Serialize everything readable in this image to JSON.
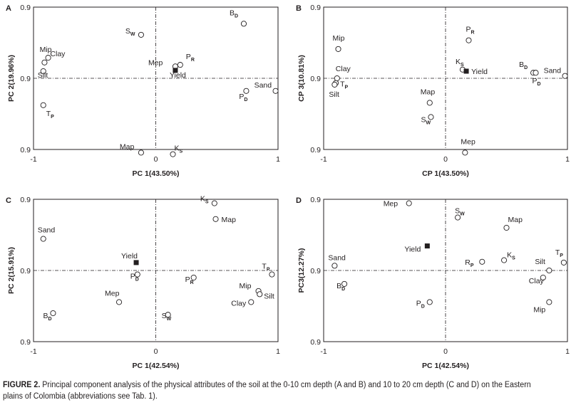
{
  "figure": {
    "caption_label": "FIGURE 2.",
    "caption_text": " Principal component analysis of the physical attributes of the soil at the 0-10 cm depth (A and B) and 10 to 20 cm depth (C and D) on the Eastern plains of Colombia (abbreviations see Tab. 1)."
  },
  "chart_data": [
    {
      "panel": "A",
      "type": "scatter",
      "xlabel": "PC 1(43.50%)",
      "ylabel": "PC 2(19.96%)",
      "xlim": [
        -1,
        1
      ],
      "ylim": [
        -0.9,
        0.9
      ],
      "xticks": [
        "-1",
        "0",
        "1"
      ],
      "yticks": [
        "0.9",
        "0.9",
        "0.9"
      ],
      "points": [
        {
          "label": "B",
          "sub": "D",
          "x": 0.72,
          "y": 0.69
        },
        {
          "label": "S",
          "sub": "W",
          "x": -0.12,
          "y": 0.55
        },
        {
          "label": "Mip",
          "x": -0.88,
          "y": 0.26
        },
        {
          "label": "Clay",
          "x": -0.91,
          "y": 0.2
        },
        {
          "label": "Silt",
          "x": -0.92,
          "y": 0.09
        },
        {
          "label": "P",
          "sub": "R",
          "x": 0.2,
          "y": 0.17
        },
        {
          "label": "Mep",
          "x": 0.16,
          "y": 0.15
        },
        {
          "label": "Yield",
          "x": 0.16,
          "y": 0.1,
          "marker": "filled-square"
        },
        {
          "label": "Sand",
          "x": 0.98,
          "y": -0.16
        },
        {
          "label": "P",
          "sub": "D",
          "x": 0.74,
          "y": -0.16
        },
        {
          "label": "T",
          "sub": "P",
          "x": -0.92,
          "y": -0.34
        },
        {
          "label": "Map",
          "x": -0.12,
          "y": -0.94
        },
        {
          "label": "K",
          "sub": "S",
          "x": 0.14,
          "y": -0.96
        }
      ]
    },
    {
      "panel": "B",
      "type": "scatter",
      "xlabel": "CP 1(43.50%)",
      "ylabel": "CP 3(10.81%)",
      "xlim": [
        -1,
        1
      ],
      "ylim": [
        -0.9,
        0.9
      ],
      "xticks": [
        "-1",
        "0",
        "1"
      ],
      "yticks": [
        "0.9",
        "0.9",
        "0.9"
      ],
      "points": [
        {
          "label": "Mip",
          "x": -0.88,
          "y": 0.37
        },
        {
          "label": "P",
          "sub": "R",
          "x": 0.19,
          "y": 0.48
        },
        {
          "label": "Clay",
          "x": -0.89,
          "y": 0.0
        },
        {
          "label": "T",
          "sub": "P",
          "x": -0.9,
          "y": -0.06
        },
        {
          "label": "Silt",
          "x": -0.91,
          "y": -0.08
        },
        {
          "label": "K",
          "sub": "S",
          "x": 0.14,
          "y": 0.11
        },
        {
          "label": "Yield",
          "x": 0.17,
          "y": 0.09,
          "marker": "filled-square"
        },
        {
          "label": "B",
          "sub": "D",
          "x": 0.72,
          "y": 0.07
        },
        {
          "label": "P",
          "sub": "D",
          "x": 0.74,
          "y": 0.07
        },
        {
          "label": "Sand",
          "x": 0.98,
          "y": 0.03
        },
        {
          "label": "Map",
          "x": -0.13,
          "y": -0.31
        },
        {
          "label": "S",
          "sub": "W",
          "x": -0.12,
          "y": -0.49
        },
        {
          "label": "Mep",
          "x": 0.16,
          "y": -0.94
        }
      ]
    },
    {
      "panel": "C",
      "type": "scatter",
      "xlabel": "PC 1(42.54%)",
      "ylabel": "PC 2(15.91%)",
      "xlim": [
        -1,
        1
      ],
      "ylim": [
        -0.9,
        0.9
      ],
      "xticks": [
        "-1",
        "0",
        "1"
      ],
      "yticks": [
        "0.9",
        "0.9",
        "0.9"
      ],
      "points": [
        {
          "label": "K",
          "sub": "S",
          "x": 0.48,
          "y": 0.85
        },
        {
          "label": "Map",
          "x": 0.49,
          "y": 0.65
        },
        {
          "label": "Sand",
          "x": -0.92,
          "y": 0.4
        },
        {
          "label": "Yield",
          "x": -0.16,
          "y": 0.1,
          "marker": "filled-square"
        },
        {
          "label": "T",
          "sub": "P",
          "x": 0.95,
          "y": -0.05
        },
        {
          "label": "P",
          "sub": "D",
          "x": -0.15,
          "y": -0.05
        },
        {
          "label": "P",
          "sub": "R",
          "x": 0.31,
          "y": -0.09
        },
        {
          "label": "Mip",
          "x": 0.84,
          "y": -0.26
        },
        {
          "label": "Silt",
          "x": 0.85,
          "y": -0.3
        },
        {
          "label": "Clay",
          "x": 0.78,
          "y": -0.4
        },
        {
          "label": "Mep",
          "x": -0.3,
          "y": -0.4
        },
        {
          "label": "S",
          "sub": "W",
          "x": 0.1,
          "y": -0.56
        },
        {
          "label": "B",
          "sub": "D",
          "x": -0.84,
          "y": -0.54
        }
      ]
    },
    {
      "panel": "D",
      "type": "scatter",
      "xlabel": "PC 1(42.54%)",
      "ylabel": "PC3(12.27%)",
      "xlim": [
        -1,
        1
      ],
      "ylim": [
        -0.9,
        0.9
      ],
      "xticks": [
        "-1",
        "0",
        "1"
      ],
      "yticks": [
        "0.9",
        "0.9",
        "0.9"
      ],
      "points": [
        {
          "label": "Mep",
          "x": -0.3,
          "y": 0.85
        },
        {
          "label": "S",
          "sub": "W",
          "x": 0.1,
          "y": 0.67
        },
        {
          "label": "Map",
          "x": 0.5,
          "y": 0.54
        },
        {
          "label": "Yield",
          "x": -0.15,
          "y": 0.31,
          "marker": "filled-square"
        },
        {
          "label": "K",
          "sub": "S",
          "x": 0.48,
          "y": 0.13
        },
        {
          "label": "R",
          "sub": "P",
          "x": 0.3,
          "y": 0.11
        },
        {
          "label": "T",
          "sub": "P",
          "x": 0.97,
          "y": 0.1
        },
        {
          "label": "Sand",
          "x": -0.91,
          "y": 0.06
        },
        {
          "label": "Silt",
          "x": 0.85,
          "y": 0.0
        },
        {
          "label": "Clay",
          "x": 0.8,
          "y": -0.09
        },
        {
          "label": "B",
          "sub": "D",
          "x": -0.83,
          "y": -0.17
        },
        {
          "label": "P",
          "sub": "D",
          "x": -0.13,
          "y": -0.4
        },
        {
          "label": "Mip",
          "x": 0.85,
          "y": -0.4
        }
      ]
    }
  ]
}
